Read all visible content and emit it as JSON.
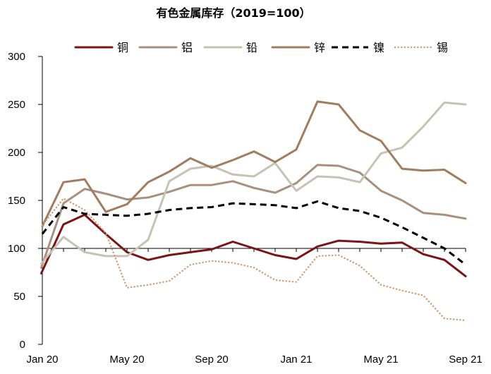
{
  "chart_data": {
    "type": "line",
    "title": "有色金属库存（2019=100）",
    "xlabel": "",
    "ylabel": "",
    "ylim": [
      0,
      300
    ],
    "yticks": [
      0,
      50,
      100,
      150,
      200,
      250,
      300
    ],
    "reference_line": 100,
    "legend_position": "top",
    "categories": [
      "Jan 20",
      "Feb 20",
      "Mar 20",
      "Apr 20",
      "May 20",
      "Jun 20",
      "Jul 20",
      "Aug 20",
      "Sep 20",
      "Oct 20",
      "Nov 20",
      "Dec 20",
      "Jan 21",
      "Feb 21",
      "Mar 21",
      "Apr 21",
      "May 21",
      "Jun 21",
      "Jul 21",
      "Aug 21",
      "Sep 21"
    ],
    "xtick_labels": [
      {
        "index": 0,
        "label": "Jan 20"
      },
      {
        "index": 4,
        "label": "May 20"
      },
      {
        "index": 8,
        "label": "Sep 20"
      },
      {
        "index": 12,
        "label": "Jan 21"
      },
      {
        "index": 16,
        "label": "May 21"
      },
      {
        "index": 20,
        "label": "Sep 21"
      }
    ],
    "series": [
      {
        "name": "铜",
        "color": "#7b1416",
        "style": "solid",
        "values": [
          null,
          125,
          135,
          115,
          96,
          88,
          93,
          96,
          99,
          107,
          100,
          93,
          89,
          102,
          108,
          107,
          105,
          106,
          94,
          88,
          71
        ],
        "start": {
          "x": -0.05,
          "y": 74
        }
      },
      {
        "name": "铝",
        "color": "#a8907f",
        "style": "solid",
        "values": [
          null,
          147,
          162,
          157,
          151,
          153,
          159,
          166,
          166,
          170,
          163,
          158,
          168,
          187,
          186,
          179,
          160,
          150,
          137,
          135,
          131
        ],
        "start": {
          "x": -0.05,
          "y": 80
        }
      },
      {
        "name": "铅",
        "color": "#c4c3b6",
        "style": "solid",
        "values": [
          null,
          112,
          96,
          92,
          92,
          109,
          170,
          183,
          186,
          177,
          175,
          189,
          160,
          175,
          174,
          169,
          199,
          205,
          227,
          252,
          250
        ],
        "start": {
          "x": -0.05,
          "y": 84
        }
      },
      {
        "name": "锌",
        "color": "#a07d5e",
        "style": "solid",
        "values": [
          123,
          169,
          172,
          138,
          146,
          169,
          180,
          194,
          184,
          192,
          201,
          190,
          203,
          253,
          250,
          223,
          212,
          183,
          181,
          182,
          168
        ],
        "start": null
      },
      {
        "name": "镍",
        "color": "#000000",
        "style": "dashed",
        "values": [
          115,
          143,
          136,
          135,
          134,
          136,
          140,
          142,
          143,
          147,
          146,
          145,
          142,
          149,
          142,
          139,
          132,
          122,
          111,
          100,
          83
        ],
        "start": null
      },
      {
        "name": "锡",
        "color": "#d09a6e",
        "style": "dotted",
        "values": [
          124,
          152,
          140,
          116,
          59,
          62,
          66,
          83,
          87,
          85,
          80,
          67,
          65,
          92,
          93,
          82,
          62,
          56,
          51,
          27,
          25
        ],
        "start": null
      }
    ]
  }
}
